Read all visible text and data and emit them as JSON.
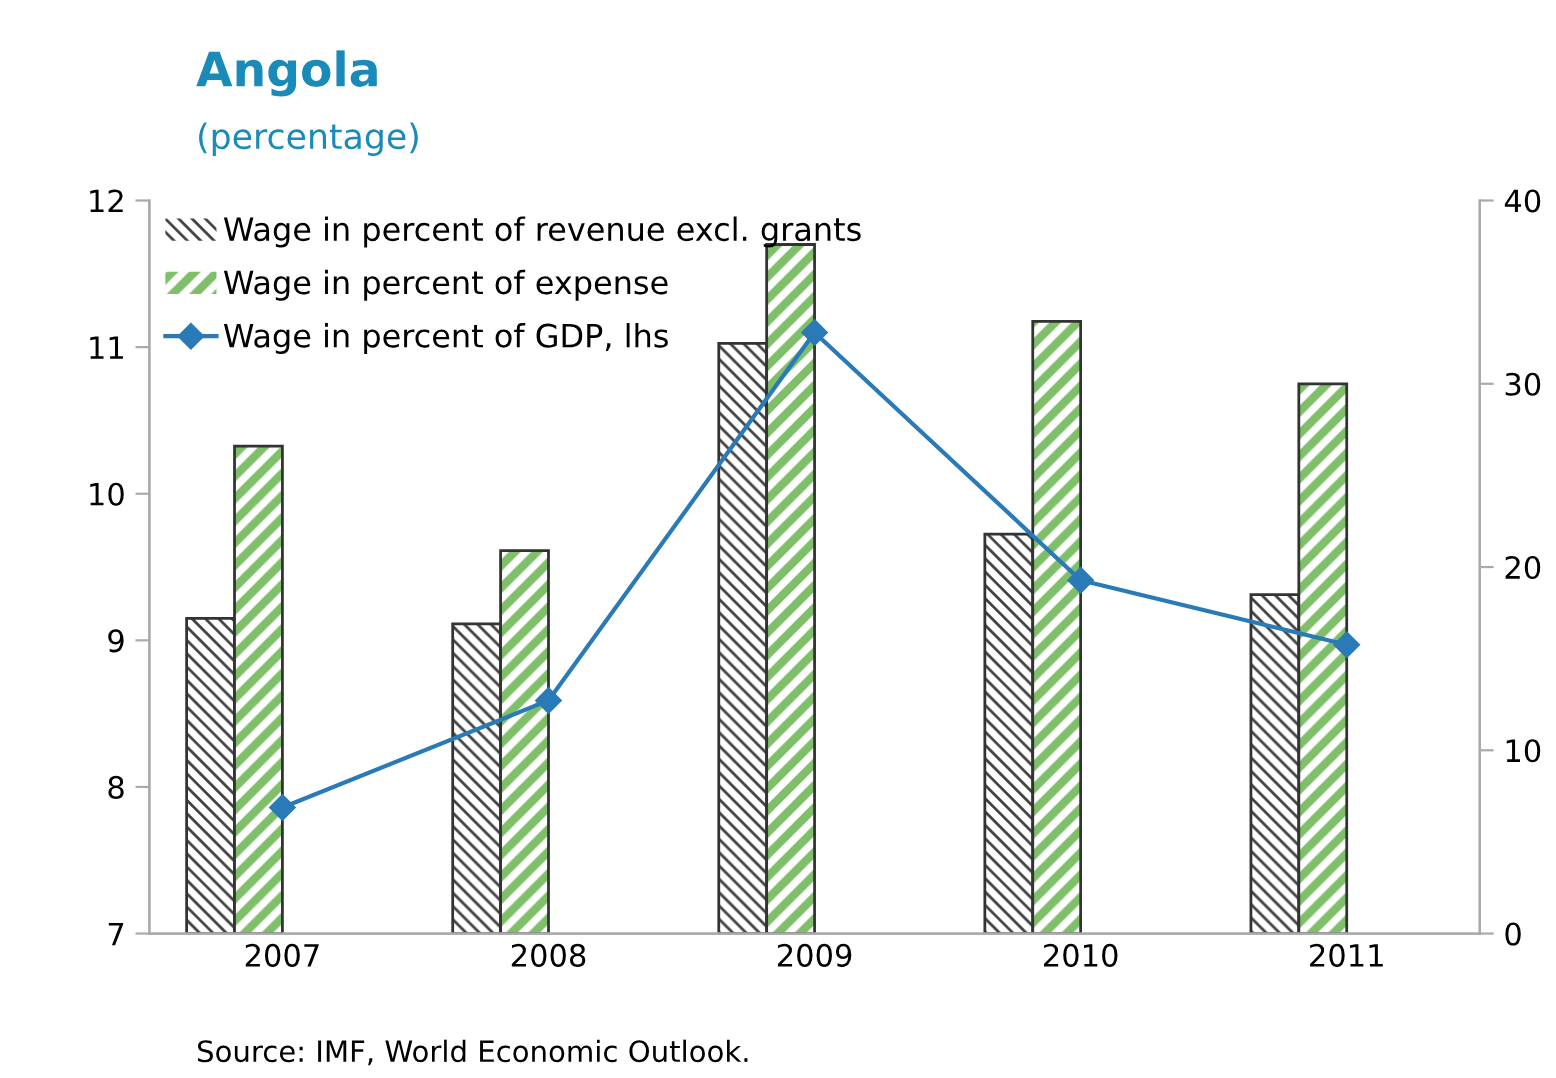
{
  "chart_data": {
    "type": "bar",
    "title": "Angola",
    "subtitle": "(percentage)",
    "categories": [
      "2007",
      "2008",
      "2009",
      "2010",
      "2011"
    ],
    "series": [
      {
        "name": "Wage in percent of revenue excl. grants",
        "color": "#404040",
        "axis": "y2",
        "values": [
          17.2,
          16.9,
          32.2,
          21.8,
          18.5
        ]
      },
      {
        "name": "Wage in percent of expense",
        "color": "#7fbf6a",
        "axis": "y2",
        "values": [
          26.6,
          20.9,
          37.6,
          33.4,
          30.0
        ]
      },
      {
        "name": "Wage in percent of GDP, lhs",
        "type": "line",
        "color": "#2a7ab8",
        "marker": "diamond",
        "values": [
          7.86,
          8.59,
          11.1,
          9.41,
          8.97
        ]
      }
    ],
    "ylim": [
      7,
      12
    ],
    "yticks": [
      7,
      8,
      9,
      10,
      11,
      12
    ],
    "y2lim": [
      0,
      40
    ],
    "y2ticks": [
      0,
      10,
      20,
      30,
      40
    ],
    "grid": false,
    "legend": "top left",
    "annotations": [
      "Source: IMF, World Economic Outlook."
    ]
  }
}
